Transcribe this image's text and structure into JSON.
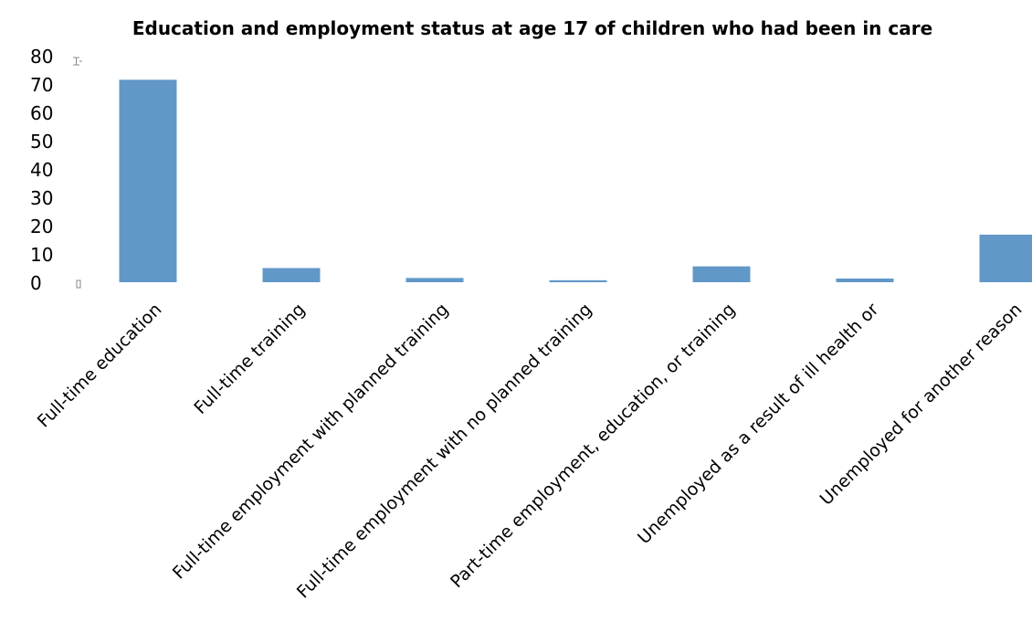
{
  "chart_data": {
    "type": "bar",
    "title": "Education and employment status at age 17 of children who had been in care",
    "xlabel": "",
    "ylabel": "",
    "categories": [
      "Full-time education",
      "Full-time training",
      "Full-time employment with planned training",
      "Full-time employment with no planned training",
      "Part-time employment, education, or training",
      "Unemployed as a result of ill health or",
      "Unemployed for another reason"
    ],
    "values": [
      71.5,
      5.0,
      1.5,
      0.7,
      5.6,
      1.3,
      16.8
    ],
    "ylim": [
      0,
      80
    ],
    "yticks": [
      "0",
      "10",
      "20",
      "30",
      "40",
      "50",
      "60",
      "70",
      "80"
    ],
    "grid": false,
    "legend": "none",
    "colors": {
      "bar": "#6198c8",
      "text": "#000000"
    }
  }
}
